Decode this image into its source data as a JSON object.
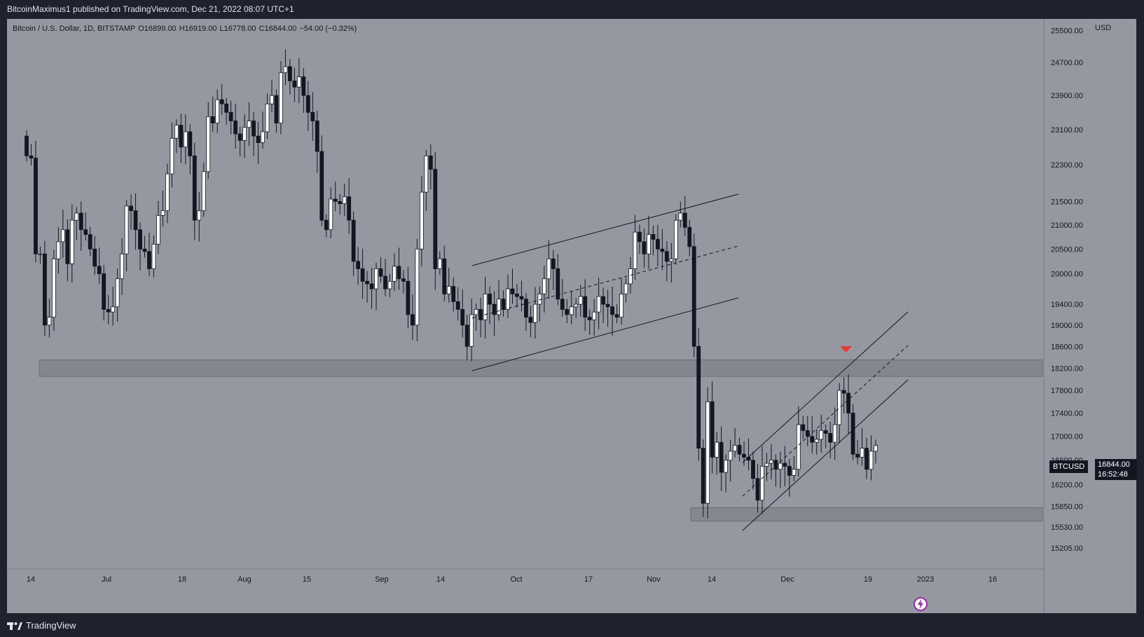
{
  "header": {
    "published": "BitcoinMaximus1 published on TradingView.com, Dec 21, 2022 08:07 UTC+1"
  },
  "legend": {
    "symbol": "Bitcoin / U.S. Dollar, 1D, BITSTAMP",
    "o_label": "O",
    "o_value": "16899.00",
    "h_label": "H",
    "h_value": "16919.00",
    "l_label": "L",
    "l_value": "16778.00",
    "c_label": "C",
    "c_value": "16844.00",
    "change": "−54.00 (−0.32%)"
  },
  "price_axis": {
    "currency": "USD",
    "last_price": "16844.00",
    "countdown": "16:52:48",
    "symbol_tag": "BTCUSD"
  },
  "footer": {
    "brand": "TradingView"
  },
  "colors": {
    "background": "#9598a1",
    "frame": "#1e222d",
    "up_body": "#ffffff",
    "down_body": "#131722",
    "wick": "#131722",
    "signal_arrow": "#e53935",
    "watermark": "#9c27b0"
  },
  "chart_data": {
    "type": "candlestick",
    "title": "Bitcoin / U.S. Dollar, 1D, BITSTAMP",
    "x_tick_labels": [
      "14",
      "Jul",
      "18",
      "Aug",
      "15",
      "Sep",
      "14",
      "Oct",
      "17",
      "Nov",
      "14",
      "Dec",
      "19",
      "2023",
      "16"
    ],
    "y_tick_labels": [
      25500,
      24700,
      23900,
      23100,
      22300,
      21500,
      21000,
      20500,
      20000,
      19400,
      19000,
      18600,
      18200,
      17800,
      17400,
      17000,
      16600,
      16200,
      15850,
      15530,
      15205
    ],
    "y_scale": "log",
    "ylim": [
      14900,
      25800
    ],
    "grid": false,
    "closes": [
      22500,
      22450,
      20400,
      20400,
      19000,
      19150,
      20300,
      20650,
      20900,
      20200,
      21100,
      21250,
      20900,
      20800,
      20500,
      20150,
      20000,
      19300,
      19250,
      19350,
      19900,
      20400,
      21400,
      21300,
      20900,
      20500,
      20450,
      20100,
      20600,
      21200,
      21300,
      22100,
      22900,
      23200,
      22700,
      23050,
      22500,
      21100,
      21300,
      22150,
      23400,
      23250,
      23800,
      23700,
      23500,
      23300,
      23000,
      22850,
      23150,
      23300,
      22950,
      22800,
      23050,
      23700,
      23900,
      23250,
      24450,
      24600,
      24250,
      24100,
      24350,
      23900,
      23500,
      23300,
      22600,
      21100,
      20900,
      21550,
      21500,
      21450,
      21600,
      21100,
      20250,
      20100,
      19850,
      19800,
      19700,
      20100,
      19950,
      19700,
      19850,
      20150,
      19900,
      19850,
      19200,
      19000,
      20500,
      21700,
      22500,
      22200,
      20100,
      20300,
      19600,
      19750,
      19450,
      19300,
      19000,
      18600,
      19200,
      19300,
      19100,
      19600,
      19400,
      19200,
      19500,
      19300,
      19700,
      19600,
      19550,
      19500,
      19150,
      19050,
      19400,
      19600,
      19900,
      20300,
      20100,
      19500,
      19300,
      19200,
      19350,
      19400,
      19550,
      19150,
      19100,
      19250,
      19550,
      19400,
      19350,
      19200,
      19150,
      19600,
      19800,
      20100,
      20850,
      20650,
      20400,
      20800,
      20700,
      20500,
      20450,
      20250,
      20300,
      21100,
      21250,
      20950,
      20550,
      18600,
      16800,
      15900,
      17600,
      16650,
      16900,
      16400,
      16600,
      16750,
      16850,
      16700,
      16650,
      16600,
      16300,
      15950,
      16500,
      16550,
      16600,
      16450,
      16550,
      16500,
      16350,
      16450,
      17200,
      17100,
      17000,
      16900,
      16950,
      17100,
      17050,
      16900,
      17200,
      17800,
      17750,
      17400,
      16700,
      16650,
      16800,
      16450,
      16750,
      16844
    ]
  }
}
